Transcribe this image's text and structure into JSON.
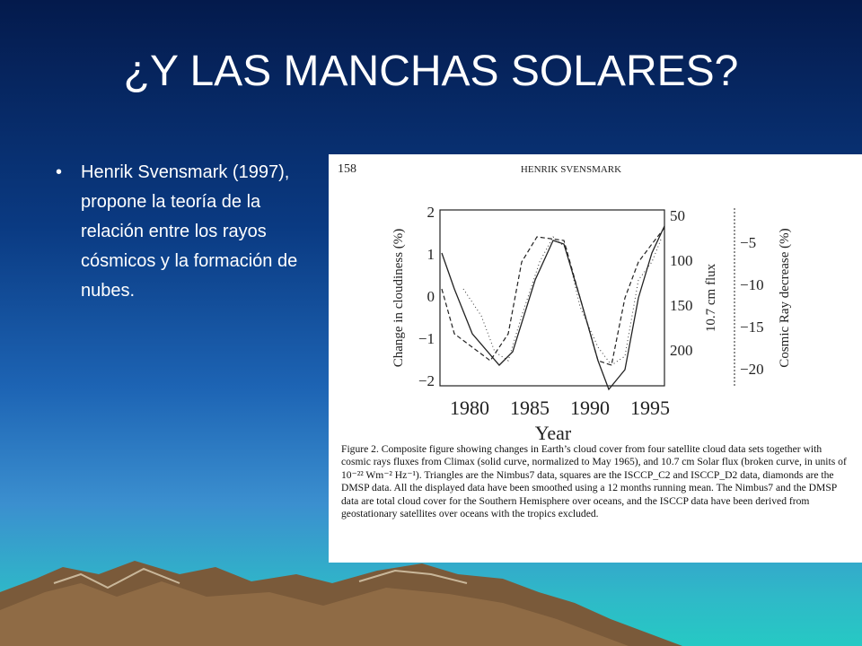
{
  "slide": {
    "title": "¿Y LAS MANCHAS SOLARES?",
    "bullets": [
      "Henrik Svensmark (1997), propone la teoría de la relación entre los rayos cósmicos y la formación de nubes."
    ]
  },
  "figure": {
    "page_number": "158",
    "running_head": "HENRIK SVENSMARK",
    "y_label": "Change in cloudiness (%)",
    "y2_label": "10.7 cm flux",
    "y3_label": "Cosmic Ray decrease (%)",
    "x_label": "Year",
    "x_ticks": [
      "1980",
      "1985",
      "1990",
      "1995"
    ],
    "y_ticks": [
      "2",
      "1",
      "0",
      "−1",
      "−2"
    ],
    "y2_ticks": [
      "50",
      "100",
      "150",
      "200"
    ],
    "y3_ticks": [
      "−5",
      "−10",
      "−15",
      "−20"
    ],
    "caption": "Figure 2. Composite figure showing changes in Earth’s cloud cover from four satellite cloud data sets together with cosmic rays fluxes from Climax (solid curve, normalized to May 1965), and 10.7 cm Solar flux (broken curve, in units of 10⁻²² Wm⁻² Hz⁻¹). Triangles are the Nimbus7 data, squares are the ISCCP_C2 and ISCCP_D2 data, diamonds are the DMSP data. All the displayed data have been smoothed using a 12 months running mean. The Nimbus7 and the DMSP data are total cloud cover for the Southern Hemisphere over oceans, and the ISCCP data have been derived from geostationary satellites over oceans with the tropics excluded."
  }
}
